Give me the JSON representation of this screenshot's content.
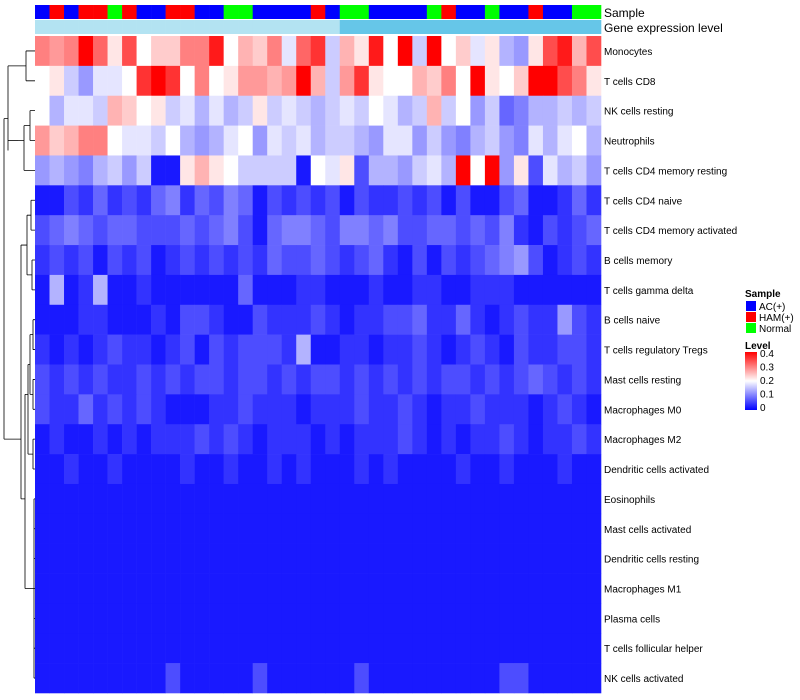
{
  "chart_data": {
    "type": "heatmap",
    "annotation_rows": [
      "Sample",
      "Gene expression level"
    ],
    "row_labels": [
      "Monocytes",
      "T cells CD8",
      "NK cells resting",
      "Neutrophils",
      "T cells CD4 memory resting",
      "T cells CD4 naive",
      "T cells CD4 memory activated",
      "B cells memory",
      "T cells gamma delta",
      "B cells naive",
      "T cells regulatory  Tregs",
      "Mast cells resting",
      "Macrophages M0",
      "Macrophages M2",
      "Dendritic cells activated",
      "Eosinophils",
      "Mast cells activated",
      "Dendritic cells resting",
      "Macrophages M1",
      "Plasma cells",
      "T cells follicular helper",
      "NK cells activated"
    ],
    "sample_groups": [
      "AC(+)",
      "HAM(+)",
      "AC(+)",
      "HAM(+)",
      "HAM(+)",
      "Normal",
      "HAM(+)",
      "AC(+)",
      "AC(+)",
      "HAM(+)",
      "HAM(+)",
      "AC(+)",
      "AC(+)",
      "Normal",
      "Normal",
      "AC(+)",
      "AC(+)",
      "AC(+)",
      "AC(+)",
      "HAM(+)",
      "AC(+)",
      "Normal",
      "Normal",
      "AC(+)",
      "AC(+)",
      "AC(+)",
      "AC(+)",
      "Normal",
      "HAM(+)",
      "AC(+)",
      "AC(+)",
      "Normal",
      "AC(+)",
      "AC(+)",
      "HAM(+)",
      "AC(+)",
      "AC(+)",
      "Normal",
      "Normal"
    ],
    "values": [
      [
        0.3,
        0.28,
        0.3,
        0.4,
        0.32,
        0.22,
        0.34,
        0.2,
        0.24,
        0.24,
        0.3,
        0.3,
        0.38,
        0.2,
        0.26,
        0.24,
        0.3,
        0.18,
        0.32,
        0.36,
        0.16,
        0.26,
        0.22,
        0.38,
        0.2,
        0.4,
        0.16,
        0.4,
        0.2,
        0.24,
        0.18,
        0.22,
        0.14,
        0.12,
        0.22,
        0.34,
        0.38,
        0.26,
        0.34
      ],
      [
        0.2,
        0.22,
        0.16,
        0.12,
        0.18,
        0.18,
        0.2,
        0.36,
        0.4,
        0.36,
        0.2,
        0.3,
        0.2,
        0.22,
        0.28,
        0.28,
        0.26,
        0.28,
        0.4,
        0.26,
        0.16,
        0.28,
        0.36,
        0.22,
        0.2,
        0.2,
        0.26,
        0.24,
        0.3,
        0.2,
        0.4,
        0.22,
        0.2,
        0.24,
        0.4,
        0.4,
        0.34,
        0.3,
        0.22
      ],
      [
        0.2,
        0.14,
        0.18,
        0.18,
        0.16,
        0.26,
        0.24,
        0.2,
        0.22,
        0.16,
        0.18,
        0.14,
        0.18,
        0.14,
        0.16,
        0.22,
        0.16,
        0.18,
        0.16,
        0.14,
        0.16,
        0.18,
        0.16,
        0.2,
        0.18,
        0.14,
        0.16,
        0.26,
        0.16,
        0.2,
        0.12,
        0.16,
        0.08,
        0.1,
        0.14,
        0.14,
        0.16,
        0.14,
        0.16
      ],
      [
        0.28,
        0.24,
        0.26,
        0.3,
        0.3,
        0.2,
        0.18,
        0.18,
        0.16,
        0.2,
        0.14,
        0.12,
        0.14,
        0.18,
        0.2,
        0.12,
        0.18,
        0.16,
        0.18,
        0.14,
        0.16,
        0.16,
        0.14,
        0.12,
        0.18,
        0.18,
        0.12,
        0.16,
        0.12,
        0.1,
        0.14,
        0.16,
        0.12,
        0.1,
        0.18,
        0.14,
        0.18,
        0.2,
        0.14
      ],
      [
        0.12,
        0.14,
        0.12,
        0.1,
        0.14,
        0.16,
        0.12,
        0.16,
        0.02,
        0.02,
        0.22,
        0.26,
        0.22,
        0.2,
        0.16,
        0.16,
        0.16,
        0.16,
        0.02,
        0.2,
        0.18,
        0.22,
        0.06,
        0.14,
        0.14,
        0.12,
        0.16,
        0.18,
        0.14,
        0.4,
        0.2,
        0.4,
        0.12,
        0.22,
        0.06,
        0.18,
        0.14,
        0.16,
        0.12
      ],
      [
        0.02,
        0.02,
        0.06,
        0.04,
        0.08,
        0.04,
        0.06,
        0.04,
        0.08,
        0.1,
        0.04,
        0.08,
        0.06,
        0.1,
        0.08,
        0.02,
        0.06,
        0.04,
        0.06,
        0.04,
        0.06,
        0.02,
        0.06,
        0.04,
        0.04,
        0.06,
        0.04,
        0.06,
        0.02,
        0.06,
        0.02,
        0.02,
        0.06,
        0.08,
        0.02,
        0.02,
        0.04,
        0.08,
        0.04
      ],
      [
        0.06,
        0.08,
        0.1,
        0.08,
        0.06,
        0.08,
        0.08,
        0.06,
        0.06,
        0.06,
        0.08,
        0.06,
        0.08,
        0.1,
        0.06,
        0.02,
        0.08,
        0.1,
        0.1,
        0.08,
        0.06,
        0.1,
        0.1,
        0.08,
        0.1,
        0.06,
        0.06,
        0.08,
        0.08,
        0.06,
        0.08,
        0.06,
        0.1,
        0.04,
        0.02,
        0.06,
        0.04,
        0.06,
        0.08
      ],
      [
        0.04,
        0.06,
        0.04,
        0.06,
        0.02,
        0.06,
        0.04,
        0.06,
        0.02,
        0.04,
        0.06,
        0.04,
        0.06,
        0.04,
        0.06,
        0.04,
        0.08,
        0.06,
        0.06,
        0.08,
        0.06,
        0.04,
        0.06,
        0.08,
        0.04,
        0.02,
        0.06,
        0.02,
        0.06,
        0.04,
        0.06,
        0.08,
        0.1,
        0.12,
        0.06,
        0.02,
        0.04,
        0.06,
        0.04
      ],
      [
        0.02,
        0.14,
        0.02,
        0.04,
        0.14,
        0.02,
        0.02,
        0.04,
        0.02,
        0.02,
        0.02,
        0.02,
        0.02,
        0.02,
        0.08,
        0.02,
        0.02,
        0.02,
        0.04,
        0.04,
        0.02,
        0.02,
        0.02,
        0.04,
        0.02,
        0.02,
        0.04,
        0.04,
        0.02,
        0.02,
        0.04,
        0.04,
        0.04,
        0.02,
        0.02,
        0.02,
        0.02,
        0.02,
        0.02
      ],
      [
        0.02,
        0.02,
        0.02,
        0.04,
        0.04,
        0.02,
        0.02,
        0.02,
        0.04,
        0.02,
        0.06,
        0.06,
        0.04,
        0.02,
        0.02,
        0.06,
        0.04,
        0.04,
        0.04,
        0.06,
        0.04,
        0.02,
        0.04,
        0.04,
        0.06,
        0.06,
        0.08,
        0.04,
        0.04,
        0.08,
        0.04,
        0.02,
        0.04,
        0.06,
        0.04,
        0.04,
        0.12,
        0.06,
        0.04
      ],
      [
        0.04,
        0.02,
        0.04,
        0.02,
        0.04,
        0.06,
        0.04,
        0.04,
        0.02,
        0.04,
        0.06,
        0.02,
        0.06,
        0.04,
        0.06,
        0.06,
        0.06,
        0.04,
        0.14,
        0.02,
        0.02,
        0.04,
        0.04,
        0.02,
        0.04,
        0.04,
        0.06,
        0.04,
        0.02,
        0.04,
        0.06,
        0.04,
        0.02,
        0.06,
        0.04,
        0.04,
        0.06,
        0.06,
        0.04
      ],
      [
        0.06,
        0.04,
        0.06,
        0.04,
        0.06,
        0.04,
        0.04,
        0.06,
        0.04,
        0.06,
        0.04,
        0.06,
        0.06,
        0.04,
        0.06,
        0.06,
        0.04,
        0.06,
        0.04,
        0.06,
        0.06,
        0.04,
        0.06,
        0.04,
        0.06,
        0.04,
        0.06,
        0.04,
        0.06,
        0.06,
        0.04,
        0.06,
        0.04,
        0.06,
        0.08,
        0.06,
        0.04,
        0.06,
        0.04
      ],
      [
        0.06,
        0.04,
        0.04,
        0.08,
        0.04,
        0.06,
        0.04,
        0.06,
        0.04,
        0.02,
        0.02,
        0.02,
        0.04,
        0.04,
        0.06,
        0.04,
        0.04,
        0.04,
        0.02,
        0.04,
        0.04,
        0.04,
        0.06,
        0.04,
        0.04,
        0.06,
        0.04,
        0.02,
        0.04,
        0.04,
        0.06,
        0.04,
        0.04,
        0.04,
        0.02,
        0.04,
        0.06,
        0.04,
        0.02
      ],
      [
        0.02,
        0.04,
        0.02,
        0.02,
        0.04,
        0.02,
        0.04,
        0.02,
        0.04,
        0.04,
        0.04,
        0.06,
        0.04,
        0.06,
        0.04,
        0.02,
        0.04,
        0.04,
        0.04,
        0.02,
        0.04,
        0.02,
        0.04,
        0.04,
        0.04,
        0.06,
        0.04,
        0.02,
        0.04,
        0.02,
        0.04,
        0.04,
        0.06,
        0.04,
        0.02,
        0.04,
        0.04,
        0.06,
        0.04
      ],
      [
        0.02,
        0.02,
        0.04,
        0.02,
        0.02,
        0.04,
        0.02,
        0.02,
        0.02,
        0.02,
        0.04,
        0.02,
        0.02,
        0.04,
        0.02,
        0.02,
        0.04,
        0.02,
        0.04,
        0.02,
        0.02,
        0.02,
        0.04,
        0.02,
        0.04,
        0.02,
        0.02,
        0.02,
        0.02,
        0.04,
        0.02,
        0.02,
        0.04,
        0.02,
        0.02,
        0.02,
        0.04,
        0.02,
        0.02
      ],
      [
        0.02,
        0.02,
        0.02,
        0.02,
        0.02,
        0.02,
        0.02,
        0.02,
        0.02,
        0.02,
        0.02,
        0.02,
        0.02,
        0.02,
        0.02,
        0.02,
        0.02,
        0.02,
        0.02,
        0.02,
        0.02,
        0.02,
        0.02,
        0.02,
        0.02,
        0.02,
        0.02,
        0.02,
        0.02,
        0.02,
        0.02,
        0.02,
        0.02,
        0.02,
        0.02,
        0.02,
        0.02,
        0.02,
        0.02
      ],
      [
        0.02,
        0.02,
        0.02,
        0.02,
        0.02,
        0.02,
        0.02,
        0.02,
        0.02,
        0.02,
        0.02,
        0.02,
        0.02,
        0.02,
        0.02,
        0.02,
        0.02,
        0.02,
        0.02,
        0.02,
        0.02,
        0.02,
        0.02,
        0.02,
        0.02,
        0.02,
        0.02,
        0.02,
        0.02,
        0.02,
        0.02,
        0.02,
        0.02,
        0.02,
        0.02,
        0.02,
        0.02,
        0.02,
        0.02
      ],
      [
        0.02,
        0.02,
        0.02,
        0.02,
        0.02,
        0.02,
        0.02,
        0.02,
        0.02,
        0.02,
        0.02,
        0.02,
        0.02,
        0.02,
        0.02,
        0.02,
        0.02,
        0.02,
        0.02,
        0.02,
        0.02,
        0.02,
        0.02,
        0.02,
        0.02,
        0.02,
        0.02,
        0.02,
        0.02,
        0.02,
        0.02,
        0.02,
        0.02,
        0.02,
        0.02,
        0.02,
        0.02,
        0.02,
        0.02
      ],
      [
        0.02,
        0.02,
        0.02,
        0.02,
        0.02,
        0.02,
        0.02,
        0.02,
        0.02,
        0.02,
        0.02,
        0.02,
        0.02,
        0.02,
        0.02,
        0.02,
        0.02,
        0.02,
        0.02,
        0.02,
        0.02,
        0.02,
        0.02,
        0.02,
        0.02,
        0.02,
        0.02,
        0.02,
        0.02,
        0.02,
        0.02,
        0.02,
        0.02,
        0.02,
        0.02,
        0.02,
        0.02,
        0.02,
        0.02
      ],
      [
        0.02,
        0.02,
        0.02,
        0.02,
        0.02,
        0.02,
        0.02,
        0.02,
        0.02,
        0.02,
        0.02,
        0.02,
        0.02,
        0.02,
        0.02,
        0.02,
        0.02,
        0.02,
        0.02,
        0.02,
        0.02,
        0.02,
        0.02,
        0.02,
        0.02,
        0.02,
        0.02,
        0.02,
        0.02,
        0.02,
        0.02,
        0.02,
        0.02,
        0.02,
        0.02,
        0.02,
        0.02,
        0.02,
        0.02
      ],
      [
        0.02,
        0.02,
        0.02,
        0.02,
        0.02,
        0.02,
        0.02,
        0.02,
        0.02,
        0.02,
        0.02,
        0.02,
        0.02,
        0.02,
        0.02,
        0.02,
        0.02,
        0.02,
        0.02,
        0.02,
        0.02,
        0.02,
        0.02,
        0.02,
        0.02,
        0.02,
        0.02,
        0.02,
        0.02,
        0.02,
        0.02,
        0.02,
        0.02,
        0.02,
        0.02,
        0.02,
        0.02,
        0.02,
        0.02
      ],
      [
        0.02,
        0.02,
        0.02,
        0.02,
        0.02,
        0.02,
        0.02,
        0.02,
        0.02,
        0.06,
        0.02,
        0.02,
        0.02,
        0.02,
        0.02,
        0.06,
        0.02,
        0.02,
        0.02,
        0.02,
        0.02,
        0.02,
        0.06,
        0.02,
        0.02,
        0.02,
        0.02,
        0.02,
        0.02,
        0.02,
        0.02,
        0.02,
        0.06,
        0.06,
        0.02,
        0.02,
        0.02,
        0.02,
        0.02
      ]
    ],
    "expression_level_colors": [
      "#b3e3f2",
      "#b3e3f2",
      "#b3e3f2",
      "#b3e3f2",
      "#b3e3f2",
      "#b3e3f2",
      "#b3e3f2",
      "#b3e3f2",
      "#b3e3f2",
      "#b3e3f2",
      "#b3e3f2",
      "#b3e3f2",
      "#b3e3f2",
      "#b3e3f2",
      "#b3e3f2",
      "#b3e3f2",
      "#b3e3f2",
      "#b3e3f2",
      "#b3e3f2",
      "#b3e3f2",
      "#b3e3f2",
      "#66c6e8",
      "#66c6e8",
      "#66c6e8",
      "#66c6e8",
      "#66c6e8",
      "#66c6e8",
      "#66c6e8",
      "#66c6e8",
      "#66c6e8",
      "#66c6e8",
      "#66c6e8",
      "#66c6e8",
      "#66c6e8",
      "#66c6e8",
      "#66c6e8",
      "#66c6e8",
      "#66c6e8",
      "#66c6e8"
    ],
    "legend_sample": {
      "title": "Sample",
      "items": [
        {
          "label": "AC(+)",
          "color": "#0000ff"
        },
        {
          "label": "HAM(+)",
          "color": "#ff0000"
        },
        {
          "label": "Normal",
          "color": "#00ff00"
        }
      ]
    },
    "legend_level": {
      "title": "Level",
      "ticks": [
        "0.4",
        "0.3",
        "0.2",
        "0.1",
        "0"
      ],
      "range": [
        0,
        0.4
      ]
    },
    "colors": {
      "low": "#0000ff",
      "mid": "#ffffff",
      "high": "#ff0000"
    }
  }
}
